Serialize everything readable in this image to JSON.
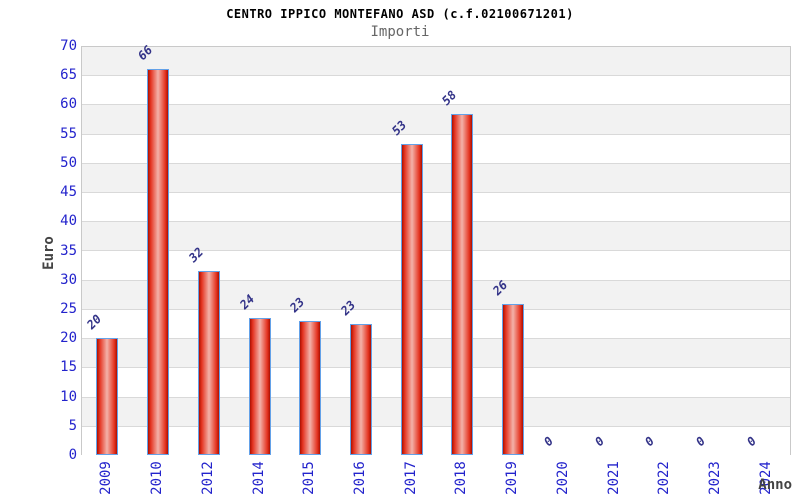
{
  "title": "CENTRO IPPICO MONTEFANO ASD (c.f.02100671201)",
  "subtitle": "Importi",
  "chart_data": {
    "type": "bar",
    "title": "CENTRO IPPICO MONTEFANO ASD (c.f.02100671201)",
    "subtitle": "Importi",
    "xlabel": "Anno",
    "ylabel": "Euro",
    "ylim": [
      0,
      70
    ],
    "yticks": [
      0,
      5,
      10,
      15,
      20,
      25,
      30,
      35,
      40,
      45,
      50,
      55,
      60,
      65,
      70
    ],
    "categories": [
      "2009",
      "2010",
      "2012",
      "2014",
      "2015",
      "2016",
      "2017",
      "2018",
      "2019",
      "2020",
      "2021",
      "2022",
      "2023",
      "2024"
    ],
    "values": [
      20,
      66,
      31.5,
      23.5,
      23,
      22.5,
      53.3,
      58.3,
      25.8,
      0,
      0,
      0,
      0,
      0
    ],
    "bar_value_labels": [
      "20",
      "66",
      "32",
      "24",
      "23",
      "23",
      "53",
      "58",
      "26",
      "0",
      "0",
      "0",
      "0",
      "0"
    ],
    "grid": "horizontal-bands-every-5",
    "legend": "none",
    "colors": {
      "bar_fill_dark": "#ad0f00",
      "bar_fill_mid": "#e53522",
      "bar_fill_light": "#f3b2a9",
      "bar_border": "#63a1e8",
      "tick_text": "#2323cc",
      "value_text": "#333388",
      "axis_label_text": "#444444",
      "band_gray": "#f2f2f2",
      "band_white": "#ffffff",
      "gridline": "#d9d9d9",
      "plot_border": "#c9c9c9",
      "title_text": "#000000",
      "subtitle_text": "#666666"
    }
  }
}
